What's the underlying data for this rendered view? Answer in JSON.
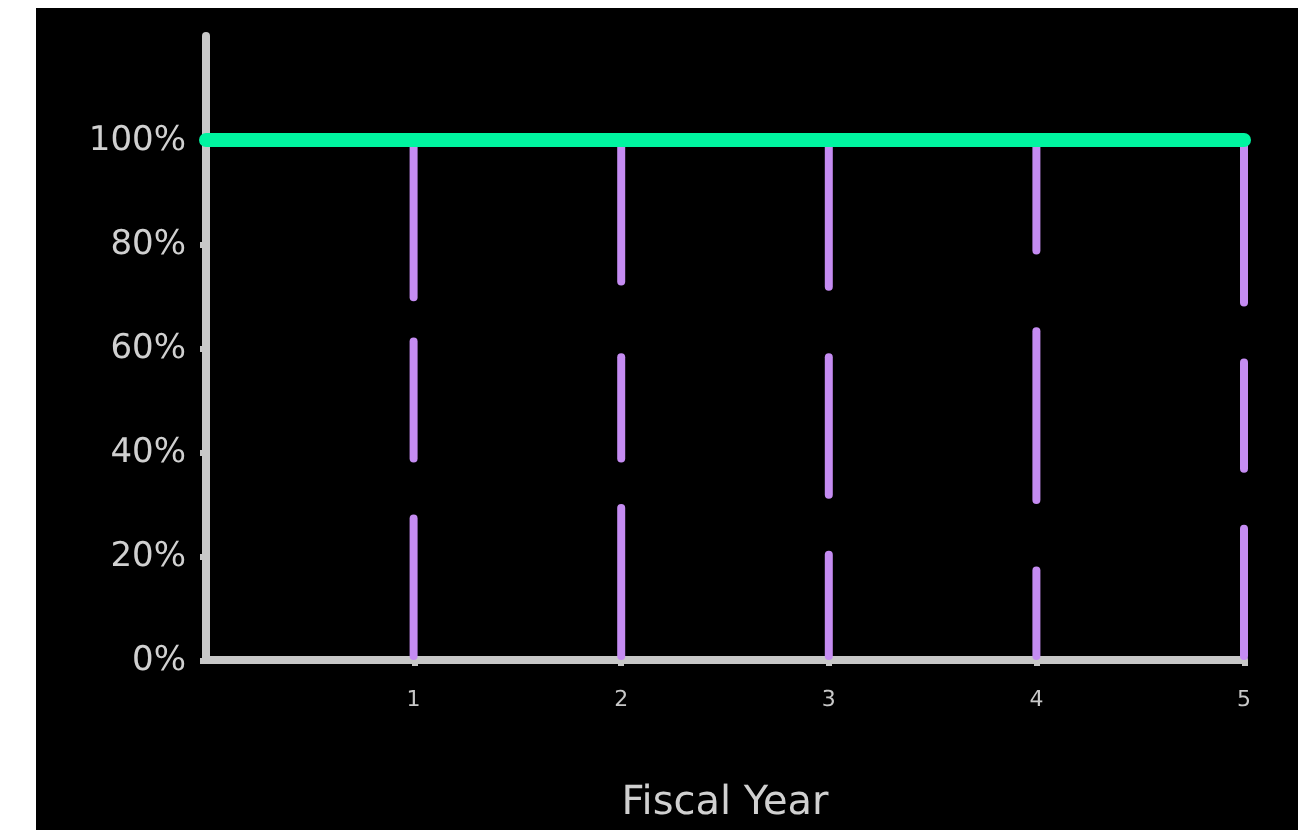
{
  "chart_data": {
    "type": "bar",
    "xlabel": "Fiscal Year",
    "x": [
      1,
      2,
      3,
      4,
      5
    ],
    "xlim": [
      0,
      5
    ],
    "xticks": [
      1,
      2,
      3,
      4,
      5
    ],
    "ylim": [
      0,
      120
    ],
    "yticks": [
      {
        "value": 0,
        "label": "0%"
      },
      {
        "value": 20,
        "label": "20%"
      },
      {
        "value": 40,
        "label": "40%"
      },
      {
        "value": 60,
        "label": "60%"
      },
      {
        "value": 80,
        "label": "80%"
      },
      {
        "value": 100,
        "label": "100%"
      }
    ],
    "series": [
      {
        "color": "#c58cf2",
        "values": [
          28,
          30,
          21,
          18,
          26
        ],
        "base": [
          0,
          0,
          0,
          0,
          0
        ]
      },
      {
        "color": "#c58cf2",
        "values": [
          24,
          21,
          28,
          34,
          22
        ],
        "base": [
          38,
          38,
          31,
          30,
          36
        ]
      },
      {
        "color": "#c58cf2",
        "values": [
          31,
          28,
          29,
          22,
          32
        ],
        "base": [
          69,
          72,
          71,
          78,
          68
        ]
      },
      {
        "type": "line",
        "color": "#00f5a0",
        "x": [
          0,
          5
        ],
        "values": [
          100,
          100
        ]
      }
    ],
    "grid": false,
    "line_style": "solid"
  }
}
